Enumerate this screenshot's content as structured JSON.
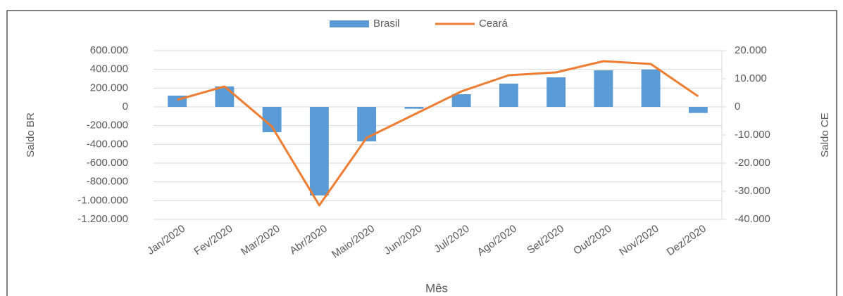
{
  "chart_data": {
    "type": "bar-line",
    "x_label": "Mês",
    "y_label": "Saldo BR",
    "y2_label": "Saldo CE",
    "categories": [
      "Jan/2020",
      "Fev/2020",
      "Mar/2020",
      "Abr/2020",
      "Maio/2020",
      "Jun/2020",
      "Jul/2020",
      "Ago/2020",
      "Set/2020",
      "Out/2020",
      "Nov/2020",
      "Dez/2020"
    ],
    "series": [
      {
        "name": "Brasil",
        "type": "bar",
        "color": "#5b9bd5",
        "values": [
          120000,
          218000,
          -270000,
          -945000,
          -368000,
          -20000,
          135000,
          248000,
          315000,
          390000,
          398000,
          -65000
        ]
      },
      {
        "name": "Ceará",
        "type": "line",
        "axis": "y2",
        "color": "#ed7d31",
        "values": [
          2500,
          7250,
          -7000,
          -35000,
          -11000,
          -2750,
          5500,
          11250,
          12250,
          16250,
          15250,
          3750
        ]
      }
    ],
    "ylim": [
      -1200000,
      600000
    ],
    "yticks": [
      {
        "value": -1200000,
        "label": "-1.200.000"
      },
      {
        "value": -1000000,
        "label": "-1.000.000"
      },
      {
        "value": -800000,
        "label": "-800.000"
      },
      {
        "value": -600000,
        "label": "-600.000"
      },
      {
        "value": -400000,
        "label": "-400.000"
      },
      {
        "value": -200000,
        "label": "-200.000"
      },
      0,
      {
        "value": 200000,
        "label": "200.000"
      },
      {
        "value": 400000,
        "label": "400.000"
      },
      {
        "value": 600000,
        "label": "600.000"
      }
    ],
    "y2lim": [
      -40000,
      20000
    ],
    "y2ticks": [
      {
        "value": -40000,
        "label": "-40.000"
      },
      {
        "value": -30000,
        "label": "-30.000"
      },
      {
        "value": -20000,
        "label": "-20.000"
      },
      {
        "value": -10000,
        "label": "-10.000"
      },
      0,
      {
        "value": 10000,
        "label": "10.000"
      },
      {
        "value": 20000,
        "label": "20.000"
      }
    ],
    "grid": true,
    "legend": "top"
  }
}
